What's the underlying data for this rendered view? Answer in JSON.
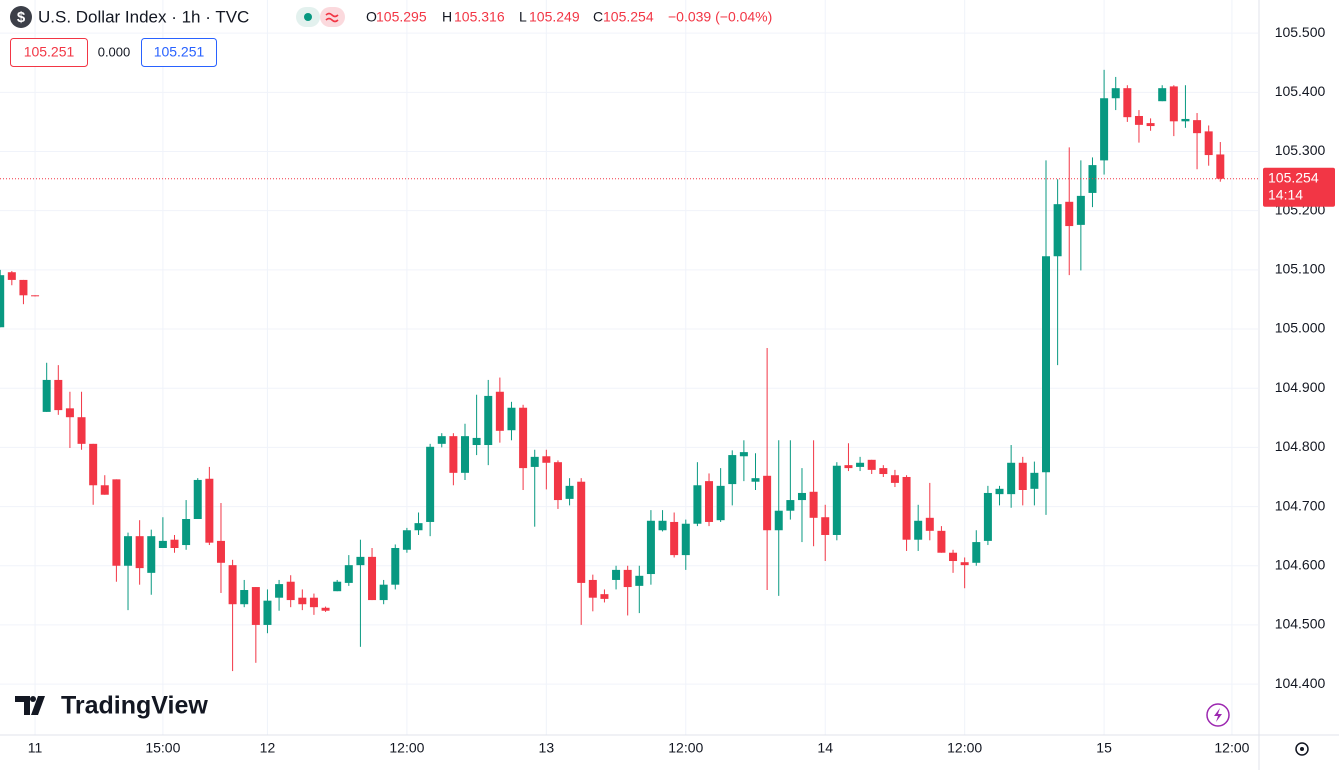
{
  "header": {
    "icon": "$",
    "symbol": "U.S. Dollar Index · 1h · TVC",
    "ohlc": [
      {
        "label": "O",
        "value": "105.295"
      },
      {
        "label": "H",
        "value": "105.316"
      },
      {
        "label": "L",
        "value": "105.249"
      },
      {
        "label": "C",
        "value": "105.254"
      }
    ],
    "change": "−0.039 (−0.04%)",
    "bid": "105.251",
    "spread": "0.000",
    "ask": "105.251"
  },
  "watermark": "TradingView",
  "chart_data": {
    "type": "candlestick",
    "categories": [
      null,
      null,
      null,
      "11",
      null,
      null,
      null,
      null,
      null,
      null,
      null,
      null,
      null,
      null,
      "15:00",
      null,
      null,
      null,
      null,
      null,
      null,
      null,
      null,
      "12",
      null,
      null,
      null,
      null,
      null,
      null,
      null,
      null,
      null,
      null,
      null,
      "12:00",
      null,
      null,
      null,
      null,
      null,
      null,
      null,
      null,
      null,
      null,
      null,
      "13",
      null,
      null,
      null,
      null,
      null,
      null,
      null,
      null,
      null,
      null,
      null,
      "12:00",
      null,
      null,
      null,
      null,
      null,
      null,
      null,
      null,
      null,
      null,
      null,
      "14",
      null,
      null,
      null,
      null,
      null,
      null,
      null,
      null,
      null,
      null,
      null,
      "12:00",
      null,
      null,
      null,
      null,
      null,
      null,
      null,
      null,
      null,
      null,
      null,
      "15",
      null,
      null,
      null,
      null,
      null,
      null,
      null,
      null,
      null,
      null,
      "12:00"
    ],
    "open": [
      105.003,
      105.096,
      105.083,
      105.057,
      104.86,
      104.914,
      104.866,
      104.851,
      104.806,
      104.736,
      104.746,
      104.6,
      104.65,
      104.588,
      104.63,
      104.644,
      104.635,
      104.679,
      104.747,
      104.642,
      104.601,
      104.535,
      104.564,
      104.5,
      104.546,
      104.573,
      104.546,
      104.546,
      104.529,
      104.557,
      104.571,
      104.601,
      104.615,
      104.542,
      104.568,
      104.627,
      104.66,
      104.674,
      104.806,
      104.819,
      104.757,
      104.804,
      104.804,
      104.894,
      104.829,
      104.867,
      104.767,
      104.785,
      104.775,
      104.713,
      104.742,
      104.576,
      104.552,
      104.576,
      104.593,
      104.566,
      104.586,
      104.66,
      104.674,
      104.618,
      104.671,
      104.743,
      104.677,
      104.738,
      104.785,
      104.742,
      104.752,
      104.66,
      104.693,
      104.711,
      104.725,
      104.682,
      104.652,
      104.77,
      104.767,
      104.779,
      104.765,
      104.753,
      104.75,
      104.644,
      104.681,
      104.659,
      104.622,
      104.606,
      104.605,
      104.642,
      104.721,
      104.721,
      104.774,
      104.73,
      104.758,
      105.123,
      105.215,
      105.176,
      105.23,
      105.285,
      105.39,
      105.407,
      105.36,
      105.348,
      105.385,
      105.41,
      105.351,
      105.353,
      105.334,
      105.295,
      null
    ],
    "high": [
      105.1,
      105.098,
      105.083,
      105.057,
      104.943,
      104.939,
      104.894,
      104.894,
      104.806,
      104.753,
      104.746,
      104.656,
      104.677,
      104.661,
      104.682,
      104.652,
      104.711,
      104.748,
      104.767,
      104.706,
      104.61,
      104.576,
      104.564,
      104.56,
      104.576,
      104.584,
      104.56,
      104.553,
      104.531,
      104.576,
      104.618,
      104.644,
      104.63,
      104.576,
      104.636,
      104.664,
      104.69,
      104.806,
      104.824,
      104.824,
      104.84,
      104.889,
      104.914,
      104.918,
      104.877,
      104.872,
      104.796,
      104.796,
      104.778,
      104.748,
      104.748,
      104.585,
      104.56,
      104.6,
      104.6,
      104.6,
      104.694,
      104.694,
      104.69,
      104.678,
      104.775,
      104.756,
      104.765,
      104.795,
      104.812,
      104.79,
      104.968,
      104.812,
      104.812,
      104.765,
      104.812,
      104.703,
      104.775,
      104.807,
      104.784,
      104.779,
      104.77,
      104.762,
      104.753,
      104.703,
      104.74,
      104.667,
      104.627,
      104.614,
      104.66,
      104.735,
      104.735,
      104.804,
      104.784,
      104.776,
      105.285,
      105.253,
      105.307,
      105.285,
      105.29,
      105.438,
      105.426,
      105.412,
      105.37,
      105.356,
      105.412,
      105.412,
      105.412,
      105.365,
      105.344,
      105.316,
      null
    ],
    "low": [
      105.003,
      105.074,
      105.042,
      105.055,
      104.86,
      104.855,
      104.799,
      104.796,
      104.703,
      104.72,
      104.573,
      104.525,
      104.568,
      104.551,
      104.63,
      104.622,
      104.627,
      104.679,
      104.635,
      104.554,
      104.422,
      104.53,
      104.436,
      104.486,
      104.524,
      104.53,
      104.525,
      104.517,
      104.522,
      104.557,
      104.566,
      104.463,
      104.542,
      104.535,
      104.56,
      104.622,
      104.652,
      104.65,
      104.8,
      104.736,
      104.745,
      104.787,
      104.77,
      104.808,
      104.812,
      104.728,
      104.666,
      104.729,
      104.696,
      104.702,
      104.5,
      104.523,
      104.538,
      104.56,
      104.516,
      104.52,
      104.568,
      104.658,
      104.614,
      104.593,
      104.667,
      104.667,
      104.674,
      104.702,
      104.743,
      104.728,
      104.559,
      104.549,
      104.678,
      104.64,
      104.633,
      104.608,
      104.643,
      104.76,
      104.76,
      104.755,
      104.75,
      104.733,
      104.625,
      104.625,
      104.643,
      104.622,
      104.588,
      104.562,
      104.6,
      104.635,
      104.702,
      104.698,
      104.702,
      104.702,
      104.686,
      104.939,
      105.091,
      105.099,
      105.206,
      105.261,
      105.37,
      105.35,
      105.315,
      105.335,
      105.385,
      105.326,
      105.34,
      105.27,
      105.276,
      105.249,
      null
    ],
    "close": [
      105.091,
      105.083,
      105.057,
      105.056,
      104.914,
      104.863,
      104.851,
      104.806,
      104.736,
      104.72,
      104.6,
      104.65,
      104.596,
      104.65,
      104.642,
      104.63,
      104.679,
      104.745,
      104.639,
      104.605,
      104.535,
      104.559,
      104.5,
      104.541,
      104.569,
      104.542,
      104.535,
      104.53,
      104.524,
      104.573,
      104.601,
      104.615,
      104.542,
      104.568,
      104.63,
      104.66,
      104.672,
      104.801,
      104.819,
      104.757,
      104.819,
      104.816,
      104.887,
      104.828,
      104.867,
      104.765,
      104.784,
      104.774,
      104.711,
      104.735,
      104.571,
      104.546,
      104.544,
      104.593,
      104.564,
      104.583,
      104.676,
      104.676,
      104.618,
      104.671,
      104.736,
      104.674,
      104.735,
      104.787,
      104.792,
      104.748,
      104.66,
      104.693,
      104.711,
      104.723,
      104.681,
      104.652,
      104.769,
      104.765,
      104.774,
      104.762,
      104.755,
      104.74,
      104.644,
      104.676,
      104.659,
      104.622,
      104.608,
      104.601,
      104.64,
      104.723,
      104.73,
      104.774,
      104.728,
      104.757,
      105.123,
      105.211,
      105.174,
      105.225,
      105.277,
      105.39,
      105.407,
      105.358,
      105.345,
      105.343,
      105.407,
      105.351,
      105.355,
      105.331,
      105.294,
      105.254,
      null
    ],
    "up_color": "#089981",
    "down_color": "#f23645",
    "ylim": [
      104.314,
      105.556
    ],
    "yticks": [
      {
        "value": 104.4,
        "label": "104.400"
      },
      {
        "value": 104.5,
        "label": "104.500"
      },
      {
        "value": 104.6,
        "label": "104.600"
      },
      {
        "value": 104.7,
        "label": "104.700"
      },
      {
        "value": 104.8,
        "label": "104.800"
      },
      {
        "value": 104.9,
        "label": "104.900"
      },
      {
        "value": 105,
        "label": "105.000"
      },
      {
        "value": 105.1,
        "label": "105.100"
      },
      {
        "value": 105.2,
        "label": "105.200"
      },
      {
        "value": 105.3,
        "label": "105.300"
      },
      {
        "value": 105.4,
        "label": "105.400"
      },
      {
        "value": 105.5,
        "label": "105.500"
      }
    ],
    "grid": true,
    "last_price": 105.254,
    "countdown": "14:14"
  }
}
